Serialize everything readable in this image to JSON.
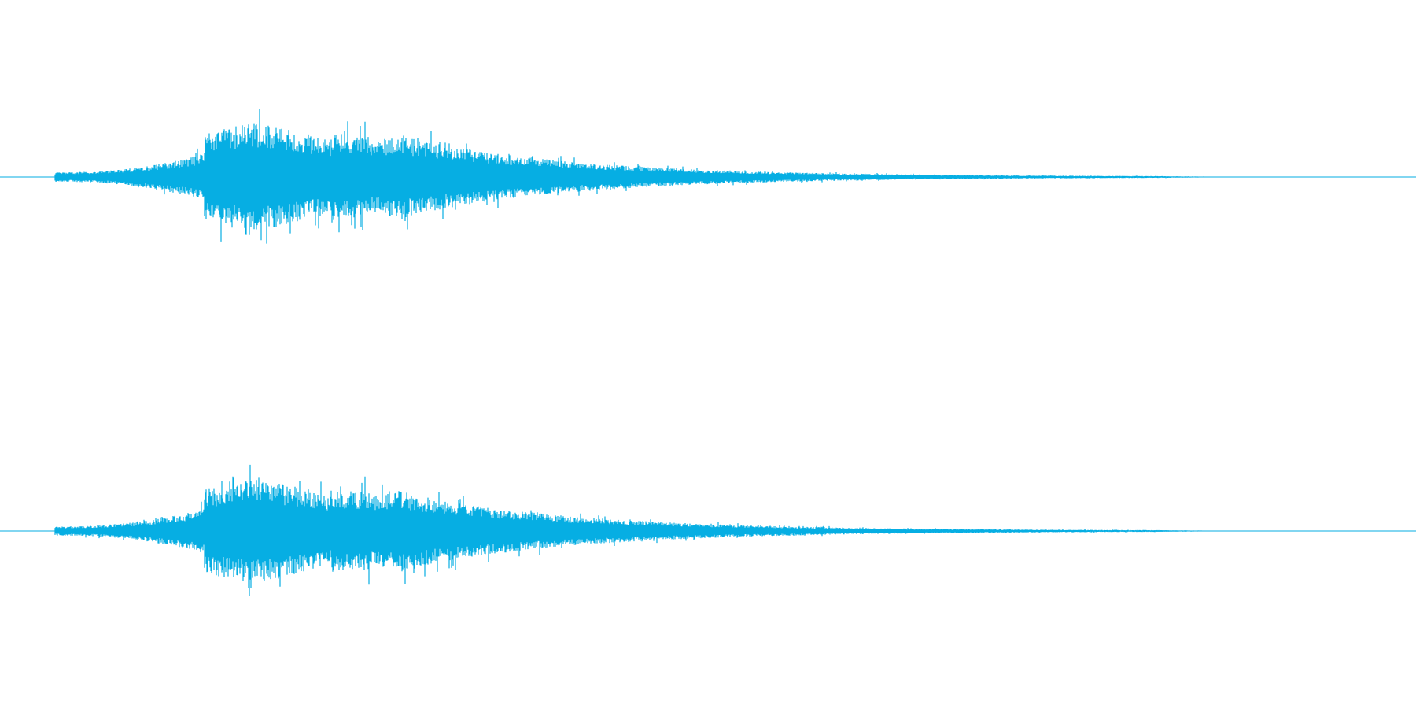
{
  "waveform": {
    "color": "#06aee3",
    "background": "#ffffff",
    "channels": [
      {
        "name": ""
      },
      {
        "name": ""
      }
    ]
  }
}
